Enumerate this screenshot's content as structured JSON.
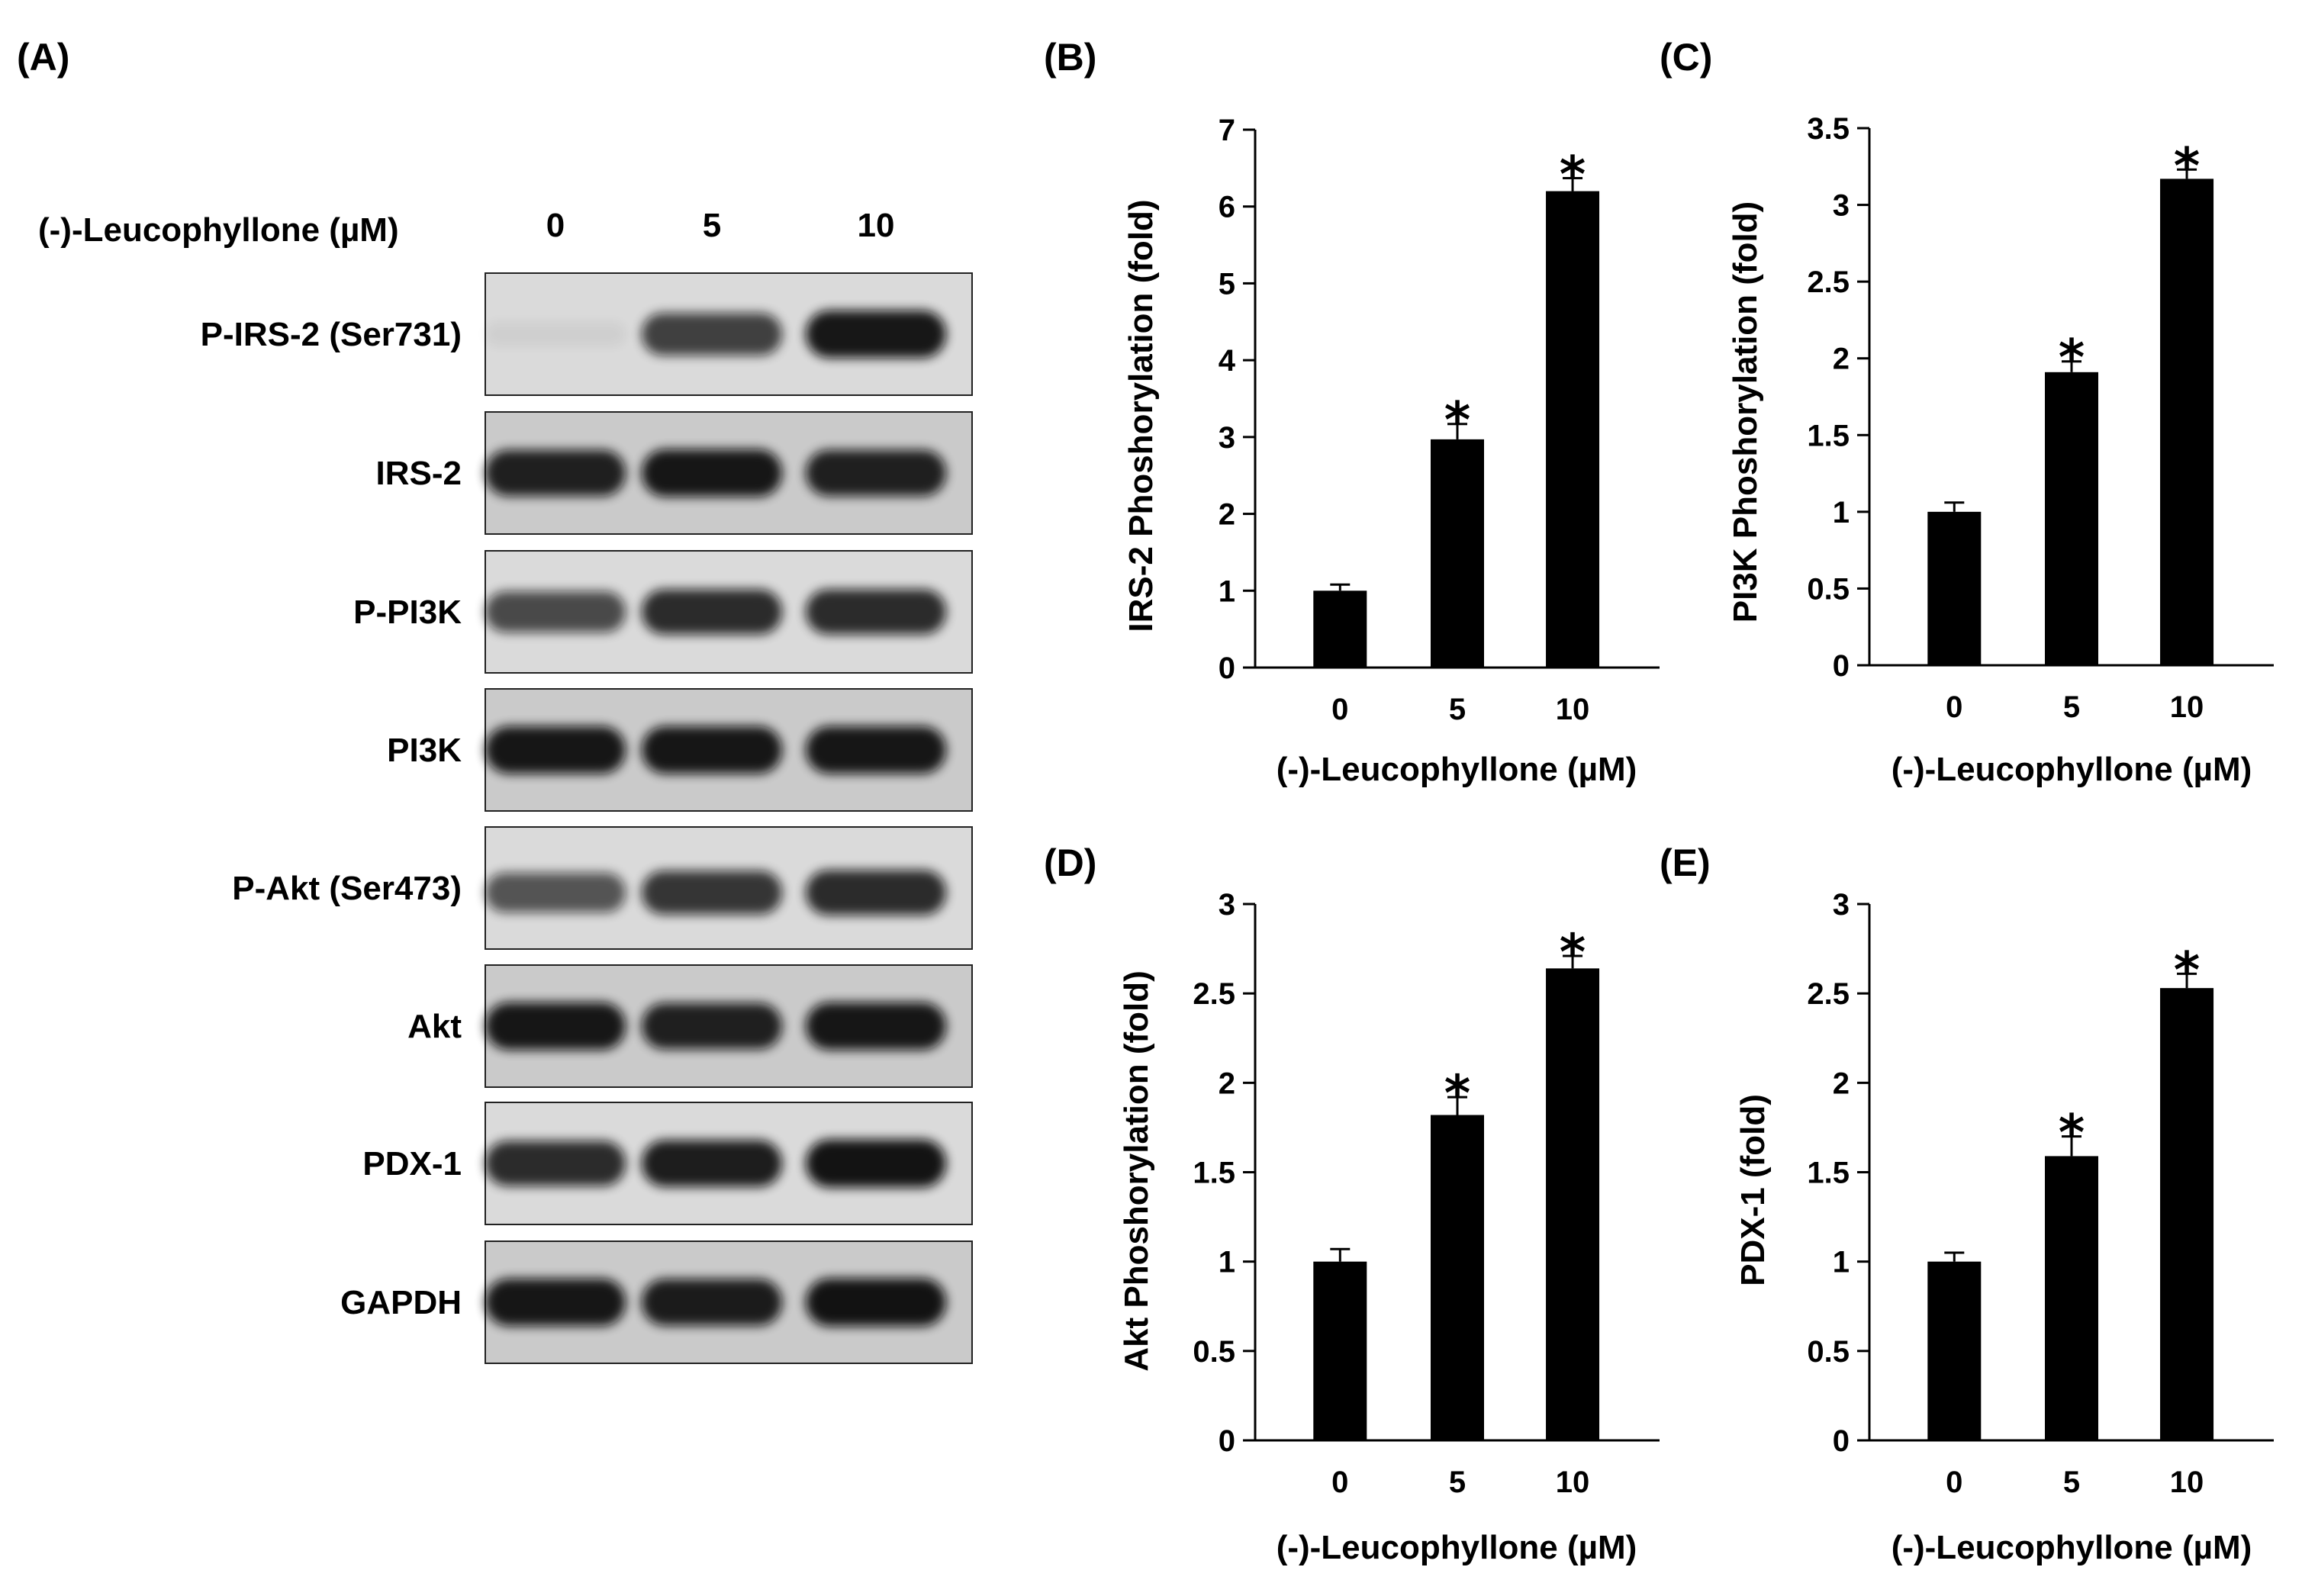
{
  "panel_a": {
    "letter": "(A)",
    "header_label": "(-)-Leucophyllone (µM)",
    "doses": [
      "0",
      "5",
      "10"
    ],
    "blots": [
      {
        "label": "P-IRS-2 (Ser731)",
        "intensities": [
          0.05,
          0.75,
          0.95
        ]
      },
      {
        "label": "IRS-2",
        "intensities": [
          0.9,
          0.95,
          0.9
        ]
      },
      {
        "label": "P-PI3K",
        "intensities": [
          0.7,
          0.85,
          0.85
        ]
      },
      {
        "label": "PI3K",
        "intensities": [
          0.95,
          0.95,
          0.95
        ]
      },
      {
        "label": "P-Akt (Ser473)",
        "intensities": [
          0.65,
          0.8,
          0.85
        ]
      },
      {
        "label": "Akt",
        "intensities": [
          0.95,
          0.9,
          0.95
        ]
      },
      {
        "label": "PDX-1",
        "intensities": [
          0.85,
          0.92,
          0.97
        ]
      },
      {
        "label": "GAPDH",
        "intensities": [
          0.95,
          0.92,
          0.97
        ]
      }
    ]
  },
  "chart_data": [
    {
      "panel": "(B)",
      "type": "bar",
      "categories": [
        "0",
        "5",
        "10"
      ],
      "values": [
        1.0,
        2.97,
        6.2
      ],
      "errors": [
        0.08,
        0.2,
        0.17
      ],
      "significance": [
        "",
        "*",
        "*"
      ],
      "ylabel": "IRS-2  Phoshorylation (fold)",
      "xlabel": "(-)-Leucophyllone (µM)",
      "ylim": [
        0,
        7
      ],
      "yticks": [
        "0",
        "1",
        "2",
        "3",
        "4",
        "5",
        "6",
        "7"
      ],
      "grid": false
    },
    {
      "panel": "(C)",
      "type": "bar",
      "categories": [
        "0",
        "5",
        "10"
      ],
      "values": [
        1.0,
        1.91,
        3.17
      ],
      "errors": [
        0.06,
        0.07,
        0.06
      ],
      "significance": [
        "",
        "*",
        "*"
      ],
      "ylabel": "PI3K Phoshorylation (fold)",
      "xlabel": "(-)-Leucophyllone (µM)",
      "ylim": [
        0,
        3.5
      ],
      "yticks": [
        "0",
        "0.5",
        "1",
        "1.5",
        "2",
        "2.5",
        "3",
        "3.5"
      ],
      "grid": false
    },
    {
      "panel": "(D)",
      "type": "bar",
      "categories": [
        "0",
        "5",
        "10"
      ],
      "values": [
        1.0,
        1.82,
        2.64
      ],
      "errors": [
        0.07,
        0.1,
        0.07
      ],
      "significance": [
        "",
        "*",
        "*"
      ],
      "ylabel": "Akt Phoshorylation (fold)",
      "xlabel": "(-)-Leucophyllone (µM)",
      "ylim": [
        0,
        3
      ],
      "yticks": [
        "0",
        "0.5",
        "1",
        "1.5",
        "2",
        "2.5",
        "3"
      ],
      "grid": false
    },
    {
      "panel": "(E)",
      "type": "bar",
      "categories": [
        "0",
        "5",
        "10"
      ],
      "values": [
        1.0,
        1.59,
        2.53
      ],
      "errors": [
        0.05,
        0.11,
        0.08
      ],
      "significance": [
        "",
        "*",
        "*"
      ],
      "ylabel": "PDX-1 (fold)",
      "xlabel": "(-)-Leucophyllone (µM)",
      "ylim": [
        0,
        3
      ],
      "yticks": [
        "0",
        "0.5",
        "1",
        "1.5",
        "2",
        "2.5",
        "3"
      ],
      "grid": false
    }
  ]
}
